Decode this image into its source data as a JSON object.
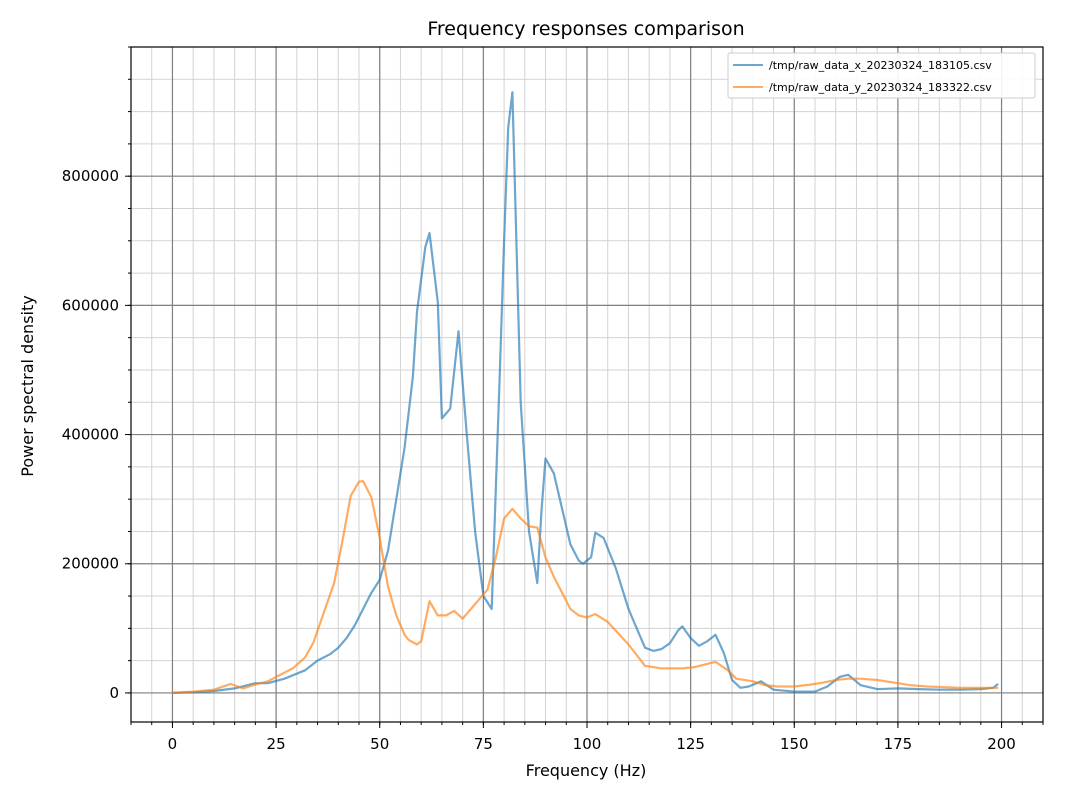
{
  "chart_data": {
    "type": "line",
    "title": "Frequency responses comparison",
    "xlabel": "Frequency (Hz)",
    "ylabel": "Power spectral density",
    "xlim": [
      -10,
      210
    ],
    "ylim": [
      -45000,
      1000000
    ],
    "xticks": [
      0,
      25,
      50,
      75,
      100,
      125,
      150,
      175,
      200
    ],
    "xtick_labels": [
      "0",
      "25",
      "50",
      "75",
      "100",
      "125",
      "150",
      "175",
      "200"
    ],
    "yticks": [
      0,
      200000,
      400000,
      600000,
      800000
    ],
    "ytick_labels": [
      "0",
      "200000",
      "400000",
      "600000",
      "800000"
    ],
    "grid": true,
    "legend_position": "top-right",
    "series": [
      {
        "name": "/tmp/raw_data_x_20230324_183105.csv",
        "color": "#1f77b4",
        "x": [
          0,
          5,
          10,
          15,
          20,
          23,
          27,
          32,
          35,
          38,
          40,
          42,
          44,
          46,
          48,
          50,
          52,
          54,
          56,
          58,
          59,
          61,
          62,
          64,
          65,
          67,
          69,
          71,
          73,
          75,
          77,
          79,
          80,
          81,
          82,
          84,
          86,
          88,
          89,
          90,
          92,
          94,
          96,
          98,
          99,
          101,
          102,
          104,
          107,
          110,
          112,
          114,
          116,
          118,
          120,
          122,
          123,
          125,
          127,
          129,
          131,
          133,
          135,
          137,
          139,
          142,
          145,
          150,
          155,
          158,
          161,
          163,
          166,
          170,
          175,
          180,
          185,
          190,
          195,
          198,
          199
        ],
        "y": [
          0,
          1000,
          3000,
          7000,
          15000,
          15000,
          22000,
          35000,
          50000,
          60000,
          70000,
          85000,
          105000,
          130000,
          155000,
          175000,
          220000,
          300000,
          380000,
          490000,
          590000,
          690000,
          712000,
          605000,
          425000,
          440000,
          560000,
          400000,
          250000,
          150000,
          130000,
          500000,
          700000,
          875000,
          930000,
          450000,
          250000,
          170000,
          280000,
          363000,
          340000,
          285000,
          230000,
          205000,
          200000,
          210000,
          248000,
          240000,
          192000,
          130000,
          100000,
          70000,
          65000,
          68000,
          77000,
          97000,
          103000,
          85000,
          73000,
          80000,
          90000,
          62000,
          20000,
          8000,
          10000,
          18000,
          5000,
          2000,
          2000,
          10000,
          25000,
          28000,
          12000,
          6000,
          7000,
          6000,
          5000,
          5000,
          6000,
          8000,
          13000
        ]
      },
      {
        "name": "/tmp/raw_data_y_20230324_183322.csv",
        "color": "#ff7f0e",
        "x": [
          0,
          5,
          10,
          14,
          17,
          20,
          23,
          26,
          29,
          32,
          34,
          36,
          39,
          41,
          43,
          45,
          46,
          48,
          50,
          52,
          54,
          56,
          57,
          59,
          60,
          62,
          64,
          66,
          68,
          70,
          72,
          74,
          76,
          78,
          80,
          82,
          84,
          86,
          88,
          90,
          92,
          94,
          96,
          98,
          100,
          102,
          105,
          110,
          114,
          118,
          123,
          126,
          129,
          131,
          134,
          136,
          140,
          143,
          146,
          150,
          154,
          157,
          160,
          163,
          166,
          170,
          175,
          178,
          182,
          186,
          190,
          194,
          199
        ],
        "y": [
          0,
          2000,
          5000,
          14000,
          7000,
          13000,
          18000,
          28000,
          38000,
          55000,
          78000,
          115000,
          170000,
          235000,
          305000,
          327000,
          328000,
          303000,
          240000,
          165000,
          120000,
          90000,
          82000,
          75000,
          80000,
          142000,
          120000,
          120000,
          127000,
          115000,
          130000,
          145000,
          160000,
          210000,
          270000,
          285000,
          270000,
          258000,
          256000,
          210000,
          180000,
          155000,
          130000,
          120000,
          117000,
          122000,
          110000,
          75000,
          42000,
          38000,
          38000,
          40000,
          45000,
          48000,
          35000,
          22000,
          18000,
          12000,
          10000,
          10000,
          13000,
          16000,
          20000,
          22000,
          22000,
          20000,
          15000,
          12000,
          10000,
          9000,
          8000,
          8000,
          8000
        ]
      }
    ]
  }
}
